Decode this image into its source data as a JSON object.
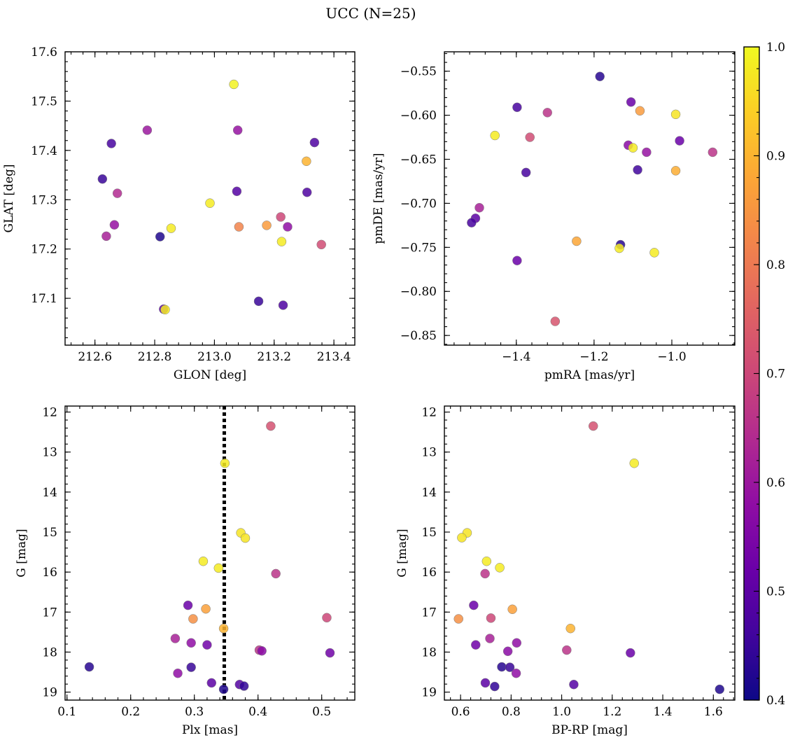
{
  "chart_data": {
    "type": "scatter",
    "title": "UCC (N=25)",
    "colorbar": {
      "min": 0.4,
      "max": 1.0,
      "ticks": [
        "0.4",
        "0.5",
        "0.6",
        "0.7",
        "0.8",
        "0.9",
        "1.0"
      ],
      "colormap": [
        "#0d0887",
        "#41049d",
        "#6a00a8",
        "#8f0da4",
        "#b12a90",
        "#cc4778",
        "#e16462",
        "#f2844b",
        "#fca636",
        "#fcce25",
        "#f0f921"
      ]
    },
    "panels": [
      {
        "id": "sky",
        "xlabel": "GLON [deg]",
        "ylabel": "GLAT [deg]",
        "xlim": [
          212.5,
          213.47
        ],
        "ylim": [
          17.005,
          17.6
        ],
        "y_inverted": false,
        "xticks": [
          "212.6",
          "212.8",
          "213.0",
          "213.2",
          "213.4"
        ],
        "yticks": [
          "17.1",
          "17.2",
          "17.3",
          "17.4",
          "17.5",
          "17.6"
        ],
        "points": [
          {
            "x": 212.625,
            "y": 17.342,
            "c": 0.45
          },
          {
            "x": 212.638,
            "y": 17.226,
            "c": 0.62
          },
          {
            "x": 212.655,
            "y": 17.414,
            "c": 0.47
          },
          {
            "x": 212.665,
            "y": 17.249,
            "c": 0.59
          },
          {
            "x": 212.675,
            "y": 17.313,
            "c": 0.64
          },
          {
            "x": 212.775,
            "y": 17.441,
            "c": 0.6
          },
          {
            "x": 212.818,
            "y": 17.225,
            "c": 0.42
          },
          {
            "x": 212.83,
            "y": 17.078,
            "c": 0.5
          },
          {
            "x": 212.835,
            "y": 17.077,
            "c": 0.98
          },
          {
            "x": 212.855,
            "y": 17.242,
            "c": 0.98
          },
          {
            "x": 212.985,
            "y": 17.293,
            "c": 0.98
          },
          {
            "x": 213.065,
            "y": 17.534,
            "c": 0.99
          },
          {
            "x": 213.075,
            "y": 17.317,
            "c": 0.49
          },
          {
            "x": 213.078,
            "y": 17.441,
            "c": 0.59
          },
          {
            "x": 213.082,
            "y": 17.245,
            "c": 0.82
          },
          {
            "x": 213.148,
            "y": 17.094,
            "c": 0.45
          },
          {
            "x": 213.175,
            "y": 17.248,
            "c": 0.86
          },
          {
            "x": 213.222,
            "y": 17.265,
            "c": 0.7
          },
          {
            "x": 213.225,
            "y": 17.215,
            "c": 0.98
          },
          {
            "x": 213.23,
            "y": 17.086,
            "c": 0.48
          },
          {
            "x": 213.245,
            "y": 17.245,
            "c": 0.58
          },
          {
            "x": 213.308,
            "y": 17.378,
            "c": 0.9
          },
          {
            "x": 213.31,
            "y": 17.315,
            "c": 0.48
          },
          {
            "x": 213.335,
            "y": 17.416,
            "c": 0.48
          },
          {
            "x": 213.358,
            "y": 17.209,
            "c": 0.71
          }
        ]
      },
      {
        "id": "pm",
        "xlabel": "pmRA [mas/yr]",
        "ylabel": "pmDE [mas/yr]",
        "xlim": [
          -1.585,
          -0.838
        ],
        "ylim": [
          -0.861,
          -0.528
        ],
        "y_inverted": false,
        "xticks": [
          "−1.4",
          "−1.2",
          "−1.0"
        ],
        "yticks": [
          "−0.85",
          "−0.80",
          "−0.75",
          "−0.70",
          "−0.65",
          "−0.60",
          "−0.55"
        ],
        "points": [
          {
            "x": -1.185,
            "y": -0.556,
            "c": 0.43
          },
          {
            "x": -1.398,
            "y": -0.591,
            "c": 0.47
          },
          {
            "x": -1.32,
            "y": -0.597,
            "c": 0.66
          },
          {
            "x": -1.105,
            "y": -0.585,
            "c": 0.52
          },
          {
            "x": -1.082,
            "y": -0.595,
            "c": 0.86
          },
          {
            "x": -0.99,
            "y": -0.599,
            "c": 0.97
          },
          {
            "x": -1.455,
            "y": -0.623,
            "c": 0.98
          },
          {
            "x": -1.365,
            "y": -0.625,
            "c": 0.71
          },
          {
            "x": -1.112,
            "y": -0.634,
            "c": 0.57
          },
          {
            "x": -1.1,
            "y": -0.637,
            "c": 0.98
          },
          {
            "x": -1.065,
            "y": -0.642,
            "c": 0.59
          },
          {
            "x": -0.98,
            "y": -0.629,
            "c": 0.52
          },
          {
            "x": -0.895,
            "y": -0.642,
            "c": 0.66
          },
          {
            "x": -1.375,
            "y": -0.665,
            "c": 0.47
          },
          {
            "x": -1.088,
            "y": -0.662,
            "c": 0.46
          },
          {
            "x": -0.99,
            "y": -0.663,
            "c": 0.89
          },
          {
            "x": -1.495,
            "y": -0.705,
            "c": 0.62
          },
          {
            "x": -1.505,
            "y": -0.717,
            "c": 0.5
          },
          {
            "x": -1.515,
            "y": -0.722,
            "c": 0.47
          },
          {
            "x": -1.245,
            "y": -0.743,
            "c": 0.88
          },
          {
            "x": -1.132,
            "y": -0.747,
            "c": 0.43
          },
          {
            "x": -1.135,
            "y": -0.751,
            "c": 0.98
          },
          {
            "x": -1.045,
            "y": -0.756,
            "c": 0.98
          },
          {
            "x": -1.398,
            "y": -0.765,
            "c": 0.52
          },
          {
            "x": -1.3,
            "y": -0.834,
            "c": 0.73
          }
        ]
      },
      {
        "id": "cmd-plx",
        "xlabel": "Plx [mas]",
        "ylabel": "G [mag]",
        "xlim": [
          0.097,
          0.552
        ],
        "ylim": [
          11.85,
          19.2
        ],
        "y_inverted": true,
        "vline": 0.347,
        "xticks": [
          "0.1",
          "0.2",
          "0.3",
          "0.4",
          "0.5"
        ],
        "yticks": [
          "12",
          "13",
          "14",
          "15",
          "16",
          "17",
          "18",
          "19"
        ],
        "points": [
          {
            "x": 0.42,
            "y": 12.35,
            "c": 0.72
          },
          {
            "x": 0.348,
            "y": 13.28,
            "c": 0.98
          },
          {
            "x": 0.373,
            "y": 15.02,
            "c": 0.97
          },
          {
            "x": 0.38,
            "y": 15.15,
            "c": 0.97
          },
          {
            "x": 0.314,
            "y": 15.73,
            "c": 0.98
          },
          {
            "x": 0.338,
            "y": 15.9,
            "c": 0.98
          },
          {
            "x": 0.428,
            "y": 16.04,
            "c": 0.66
          },
          {
            "x": 0.29,
            "y": 16.83,
            "c": 0.52
          },
          {
            "x": 0.318,
            "y": 16.92,
            "c": 0.87
          },
          {
            "x": 0.298,
            "y": 17.17,
            "c": 0.84
          },
          {
            "x": 0.508,
            "y": 17.14,
            "c": 0.7
          },
          {
            "x": 0.346,
            "y": 17.41,
            "c": 0.9
          },
          {
            "x": 0.27,
            "y": 17.66,
            "c": 0.62
          },
          {
            "x": 0.295,
            "y": 17.77,
            "c": 0.58
          },
          {
            "x": 0.32,
            "y": 17.82,
            "c": 0.53
          },
          {
            "x": 0.402,
            "y": 17.95,
            "c": 0.66
          },
          {
            "x": 0.406,
            "y": 17.97,
            "c": 0.57
          },
          {
            "x": 0.513,
            "y": 18.02,
            "c": 0.53
          },
          {
            "x": 0.135,
            "y": 18.37,
            "c": 0.43
          },
          {
            "x": 0.295,
            "y": 18.38,
            "c": 0.45
          },
          {
            "x": 0.274,
            "y": 18.53,
            "c": 0.58
          },
          {
            "x": 0.327,
            "y": 18.77,
            "c": 0.5
          },
          {
            "x": 0.371,
            "y": 18.81,
            "c": 0.49
          },
          {
            "x": 0.378,
            "y": 18.85,
            "c": 0.44
          },
          {
            "x": 0.346,
            "y": 18.93,
            "c": 0.42
          }
        ]
      },
      {
        "id": "cmd-color",
        "xlabel": "BP-RP [mag]",
        "ylabel": "G [mag]",
        "xlim": [
          0.536,
          1.685
        ],
        "ylim": [
          11.85,
          19.2
        ],
        "y_inverted": true,
        "xticks": [
          "0.6",
          "0.8",
          "1.0",
          "1.2",
          "1.4",
          "1.6"
        ],
        "yticks": [
          "12",
          "13",
          "14",
          "15",
          "16",
          "17",
          "18",
          "19"
        ],
        "points": [
          {
            "x": 1.125,
            "y": 12.35,
            "c": 0.72
          },
          {
            "x": 1.287,
            "y": 13.28,
            "c": 0.98
          },
          {
            "x": 0.626,
            "y": 15.02,
            "c": 0.97
          },
          {
            "x": 0.605,
            "y": 15.14,
            "c": 0.97
          },
          {
            "x": 0.703,
            "y": 15.73,
            "c": 0.98
          },
          {
            "x": 0.755,
            "y": 15.89,
            "c": 0.98
          },
          {
            "x": 0.697,
            "y": 16.04,
            "c": 0.66
          },
          {
            "x": 0.652,
            "y": 16.83,
            "c": 0.52
          },
          {
            "x": 0.805,
            "y": 16.93,
            "c": 0.87
          },
          {
            "x": 0.592,
            "y": 17.17,
            "c": 0.84
          },
          {
            "x": 0.72,
            "y": 17.15,
            "c": 0.7
          },
          {
            "x": 1.035,
            "y": 17.41,
            "c": 0.9
          },
          {
            "x": 0.716,
            "y": 17.66,
            "c": 0.62
          },
          {
            "x": 0.822,
            "y": 17.77,
            "c": 0.58
          },
          {
            "x": 0.66,
            "y": 17.82,
            "c": 0.53
          },
          {
            "x": 1.02,
            "y": 17.95,
            "c": 0.66
          },
          {
            "x": 0.787,
            "y": 17.98,
            "c": 0.57
          },
          {
            "x": 1.272,
            "y": 18.02,
            "c": 0.52
          },
          {
            "x": 0.763,
            "y": 18.37,
            "c": 0.43
          },
          {
            "x": 0.795,
            "y": 18.38,
            "c": 0.45
          },
          {
            "x": 0.82,
            "y": 18.53,
            "c": 0.58
          },
          {
            "x": 0.698,
            "y": 18.77,
            "c": 0.5
          },
          {
            "x": 1.048,
            "y": 18.81,
            "c": 0.49
          },
          {
            "x": 0.735,
            "y": 18.86,
            "c": 0.44
          },
          {
            "x": 1.625,
            "y": 18.93,
            "c": 0.42
          }
        ]
      }
    ]
  }
}
